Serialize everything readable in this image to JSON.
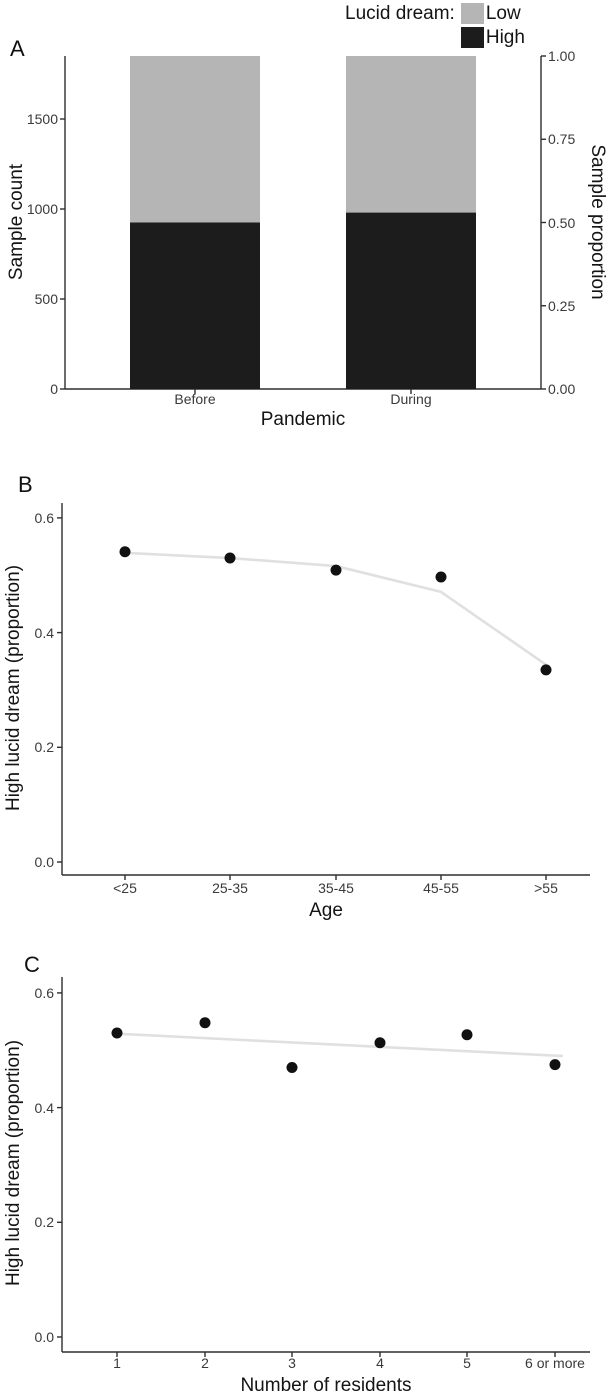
{
  "panels": {
    "a": {
      "letter": "A"
    },
    "b": {
      "letter": "B"
    },
    "c": {
      "letter": "C"
    }
  },
  "legend": {
    "title": "Lucid dream:",
    "items": [
      {
        "label": "Low",
        "color": "#b5b5b5"
      },
      {
        "label": "High",
        "color": "#1c1c1c"
      }
    ]
  },
  "colors": {
    "bar_low": "#b5b5b5",
    "bar_high": "#1c1c1c",
    "point": "#111111",
    "smooth_line": "#e0e0e0",
    "axis": "#2e2e2e"
  },
  "chart_data": [
    {
      "id": "A",
      "type": "bar",
      "stacked": true,
      "x": {
        "label": "Pandemic",
        "categories": [
          "Before",
          "During"
        ]
      },
      "y_left": {
        "label": "Sample count",
        "ticks": [
          0,
          500,
          1000,
          1500
        ],
        "max": 1850
      },
      "y_right": {
        "label": "Sample proportion",
        "ticks": [
          "0.00",
          "0.25",
          "0.50",
          "0.75",
          "1.00"
        ]
      },
      "series": [
        {
          "name": "High",
          "color": "#1c1c1c",
          "values": [
            925,
            980
          ]
        },
        {
          "name": "Low",
          "color": "#b5b5b5",
          "values": [
            925,
            870
          ]
        }
      ],
      "totals": [
        1850,
        1850
      ],
      "high_proportion": [
        0.5,
        0.53
      ],
      "legend_title": "Lucid dream:",
      "legend_position": "top-right",
      "grid": false
    },
    {
      "id": "B",
      "type": "scatter",
      "x": {
        "label": "Age",
        "categories": [
          "<25",
          "25-35",
          "35-45",
          "45-55",
          ">55"
        ]
      },
      "y": {
        "label": "High lucid dream (proportion)",
        "ticks": [
          "0.0",
          "0.2",
          "0.4",
          "0.6"
        ]
      },
      "ylim": [
        0,
        0.63
      ],
      "points": [
        0.541,
        0.53,
        0.509,
        0.497,
        0.335
      ],
      "smooth": [
        0.539,
        0.53,
        0.516,
        0.471,
        0.344
      ],
      "grid": false
    },
    {
      "id": "C",
      "type": "scatter",
      "x": {
        "label": "Number of residents",
        "categories": [
          "1",
          "2",
          "3",
          "4",
          "5",
          "6 or more"
        ]
      },
      "y": {
        "label": "High lucid dream (proportion)",
        "ticks": [
          "0.0",
          "0.2",
          "0.4",
          "0.6"
        ]
      },
      "ylim": [
        0,
        0.63
      ],
      "points": [
        0.53,
        0.548,
        0.47,
        0.513,
        0.527,
        0.475
      ],
      "trend_line": [
        0.529,
        0.49
      ],
      "grid": false
    }
  ]
}
